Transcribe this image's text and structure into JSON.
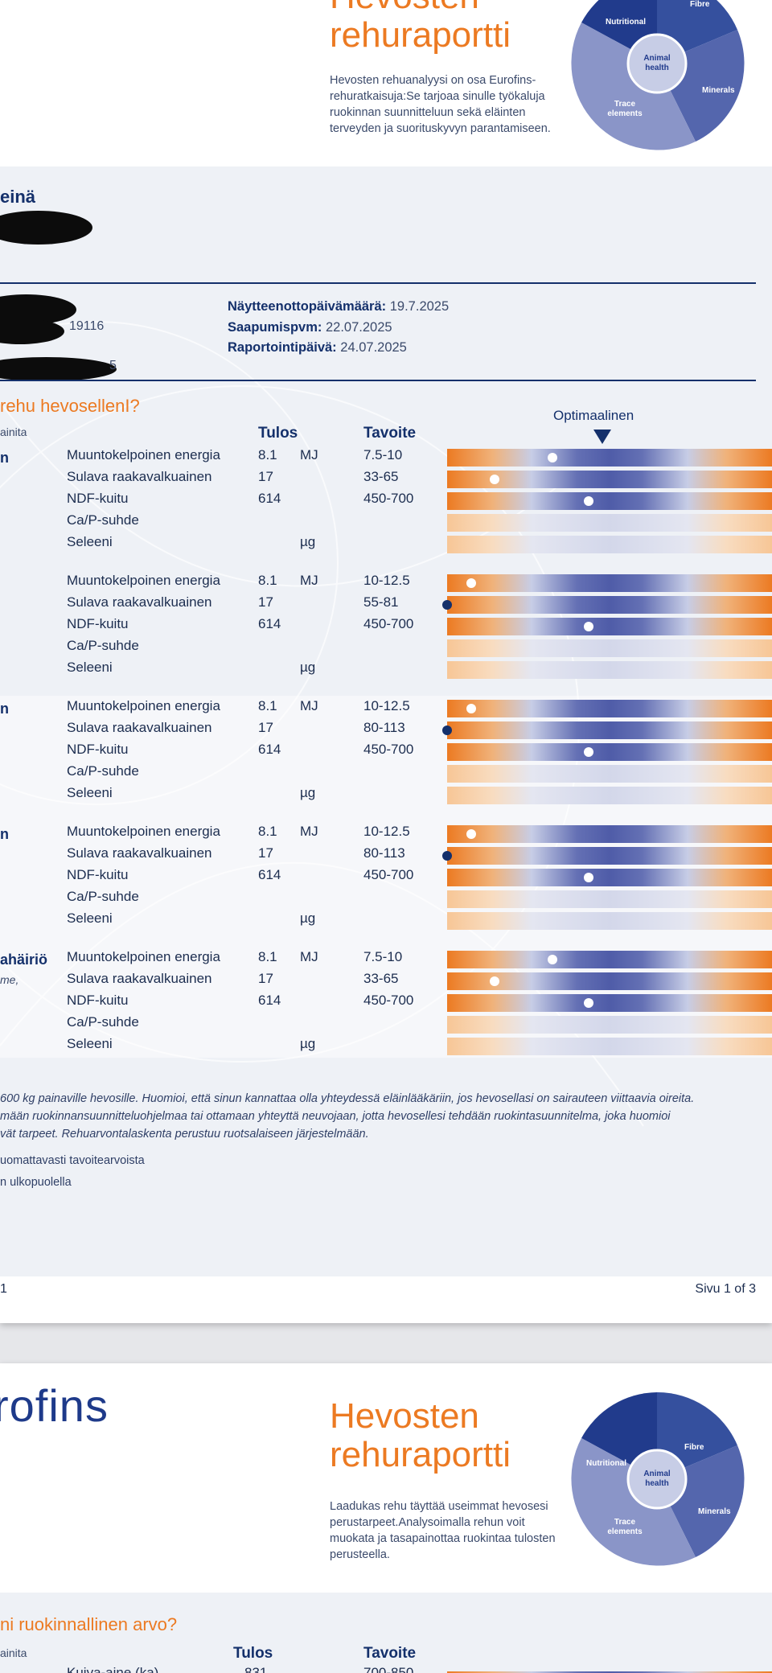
{
  "page1": {
    "header": {
      "title_line2": "rehuraportti",
      "description": "Hevosten rehuanalyysi on osa Eurofins-rehuratkaisuja:Se tarjoaa sinulle työkaluja ruokinnan suunnitteluun sekä eläinten terveyden ja suorituskyvyn parantamiseen.",
      "puzzle": {
        "nutritional": "Nutritional",
        "fibre": "Fibre",
        "animal_health": "Animal health",
        "minerals": "Minerals",
        "trace_elements": "Trace elements"
      }
    },
    "sample": {
      "feed_name": "einä",
      "partial_id_1": "19116",
      "partial_id_2": "5",
      "sampling_date_label": "Näytteenottopäivämäärä:",
      "sampling_date_value": "19.7.2025",
      "arrival_label": "Saapumispvm:",
      "arrival_value": "22.07.2025",
      "report_label": "Raportointipäivä:",
      "report_value": "24.07.2025"
    },
    "table": {
      "question": "rehu hevosellenI?",
      "sublabel": "ainita",
      "col_result": "Tulos",
      "col_target": "Tavoite",
      "optimal_label": "Optimaalinen",
      "groups": [
        {
          "label": "n",
          "sublabel": "",
          "rows": [
            {
              "name": "Muuntokelpoinen energia",
              "value": "8.1",
              "unit": "MJ",
              "target": "7.5-10",
              "marker": 0.31,
              "style": "strong"
            },
            {
              "name": "Sulava raakavalkuainen",
              "value": "17",
              "unit": "",
              "target": "33-65",
              "marker": 0.13,
              "style": "strong"
            },
            {
              "name": "NDF-kuitu",
              "value": "614",
              "unit": "",
              "target": "450-700",
              "marker": 0.42,
              "style": "strong"
            },
            {
              "name": "Ca/P-suhde",
              "value": "",
              "unit": "",
              "target": "",
              "marker": null,
              "style": "faint"
            },
            {
              "name": "Seleeni",
              "value": "",
              "unit": "µg",
              "target": "",
              "marker": null,
              "style": "faint"
            }
          ]
        },
        {
          "label": "",
          "sublabel": "",
          "rows": [
            {
              "name": "Muuntokelpoinen energia",
              "value": "8.1",
              "unit": "MJ",
              "target": "10-12.5",
              "marker": 0.06,
              "style": "strong"
            },
            {
              "name": "Sulava raakavalkuainen",
              "value": "17",
              "unit": "",
              "target": "55-81",
              "marker": 0,
              "style": "strong"
            },
            {
              "name": "NDF-kuitu",
              "value": "614",
              "unit": "",
              "target": "450-700",
              "marker": 0.42,
              "style": "strong"
            },
            {
              "name": "Ca/P-suhde",
              "value": "",
              "unit": "",
              "target": "",
              "marker": null,
              "style": "faint"
            },
            {
              "name": "Seleeni",
              "value": "",
              "unit": "µg",
              "target": "",
              "marker": null,
              "style": "faint"
            }
          ]
        },
        {
          "label": "n",
          "sublabel": "",
          "rows": [
            {
              "name": "Muuntokelpoinen energia",
              "value": "8.1",
              "unit": "MJ",
              "target": "10-12.5",
              "marker": 0.06,
              "style": "strong"
            },
            {
              "name": "Sulava raakavalkuainen",
              "value": "17",
              "unit": "",
              "target": "80-113",
              "marker": 0,
              "style": "strong"
            },
            {
              "name": "NDF-kuitu",
              "value": "614",
              "unit": "",
              "target": "450-700",
              "marker": 0.42,
              "style": "strong"
            },
            {
              "name": "Ca/P-suhde",
              "value": "",
              "unit": "",
              "target": "",
              "marker": null,
              "style": "faint"
            },
            {
              "name": "Seleeni",
              "value": "",
              "unit": "µg",
              "target": "",
              "marker": null,
              "style": "faint"
            }
          ]
        },
        {
          "label": "n",
          "sublabel": "",
          "rows": [
            {
              "name": "Muuntokelpoinen energia",
              "value": "8.1",
              "unit": "MJ",
              "target": "10-12.5",
              "marker": 0.06,
              "style": "strong"
            },
            {
              "name": "Sulava raakavalkuainen",
              "value": "17",
              "unit": "",
              "target": "80-113",
              "marker": 0,
              "style": "strong"
            },
            {
              "name": "NDF-kuitu",
              "value": "614",
              "unit": "",
              "target": "450-700",
              "marker": 0.42,
              "style": "strong"
            },
            {
              "name": "Ca/P-suhde",
              "value": "",
              "unit": "",
              "target": "",
              "marker": null,
              "style": "faint"
            },
            {
              "name": "Seleeni",
              "value": "",
              "unit": "µg",
              "target": "",
              "marker": null,
              "style": "faint"
            }
          ]
        },
        {
          "label": "ahäiriö",
          "sublabel": "me,",
          "rows": [
            {
              "name": "Muuntokelpoinen energia",
              "value": "8.1",
              "unit": "MJ",
              "target": "7.5-10",
              "marker": 0.31,
              "style": "strong"
            },
            {
              "name": "Sulava raakavalkuainen",
              "value": "17",
              "unit": "",
              "target": "33-65",
              "marker": 0.13,
              "style": "strong"
            },
            {
              "name": "NDF-kuitu",
              "value": "614",
              "unit": "",
              "target": "450-700",
              "marker": 0.42,
              "style": "strong"
            },
            {
              "name": "Ca/P-suhde",
              "value": "",
              "unit": "",
              "target": "",
              "marker": null,
              "style": "faint"
            },
            {
              "name": "Seleeni",
              "value": "",
              "unit": "µg",
              "target": "",
              "marker": null,
              "style": "faint"
            }
          ]
        }
      ]
    },
    "footnote": {
      "line1": " 600 kg painaville hevosille. Huomioi, että sinun kannattaa olla yhteydessä eläinlääkäriin, jos hevosellasi on sairauteen viittaavia oireita.",
      "line2": "mään ruokinnansuunnitteluohjelmaa tai ottamaan yhteyttä neuvojaan, jotta hevosellesi tehdään ruokintasuunnitelma, joka huomioi",
      "line3": "vät tarpeet. Rehuarvontalaskenta perustuu ruotsalaiseen järjestelmään."
    },
    "legend": {
      "line1": "uomattavasti tavoitearvoista",
      "line2": "n ulkopuolella"
    },
    "footer": {
      "left": "1",
      "right": "Sivu 1 of 3"
    }
  },
  "page2": {
    "logo": "rofins",
    "header": {
      "title_line1": "Hevosten",
      "title_line2": "rehuraportti",
      "description": "Laadukas rehu täyttää useimmat hevosesi perustarpeet.Analysoimalla rehun voit muokata ja tasapainottaa ruokintaa tulosten perusteella.",
      "puzzle": {
        "nutritional": "Nutritional",
        "fibre": "Fibre",
        "animal_health": "Animal health",
        "minerals": "Minerals",
        "trace_elements": "Trace elements"
      }
    },
    "question": "ni ruokinnallinen arvo?",
    "sublabel": "ainita",
    "col_result": "Tulos",
    "col_target": "Tavoite",
    "first_row": {
      "name": "Kuiva-aine (ka)",
      "value": "831",
      "target": "700-850"
    }
  }
}
